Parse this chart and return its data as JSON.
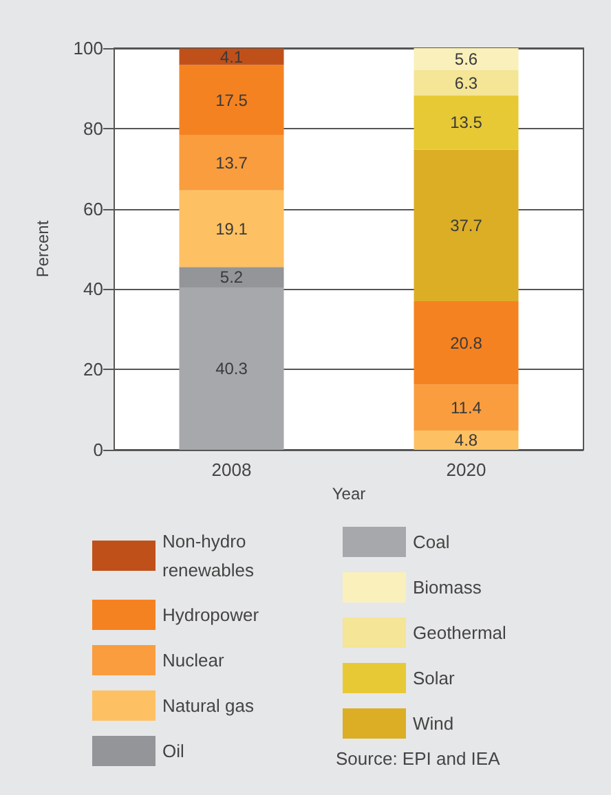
{
  "chart_data": {
    "type": "bar",
    "stacked": true,
    "xlabel": "Year",
    "ylabel": "Percent",
    "categories": [
      "2008",
      "2020"
    ],
    "series": [
      {
        "name": "Coal",
        "color": "#a7a8ab",
        "values": [
          40.3,
          null
        ]
      },
      {
        "name": "Oil",
        "color": "#939598",
        "values": [
          5.2,
          null
        ]
      },
      {
        "name": "Natural gas",
        "color": "#fdc163",
        "values": [
          19.1,
          4.8
        ]
      },
      {
        "name": "Nuclear",
        "color": "#f99d3e",
        "values": [
          13.7,
          11.4
        ]
      },
      {
        "name": "Hydropower",
        "color": "#f58220",
        "values": [
          17.5,
          20.8
        ]
      },
      {
        "name": "Non-hydro renewables",
        "color": "#c0501a",
        "values": [
          4.1,
          null
        ]
      },
      {
        "name": "Wind",
        "color": "#dbae26",
        "values": [
          null,
          37.7
        ]
      },
      {
        "name": "Solar",
        "color": "#e7c935",
        "values": [
          null,
          13.5
        ]
      },
      {
        "name": "Geothermal",
        "color": "#f4e597",
        "values": [
          null,
          6.3
        ]
      },
      {
        "name": "Biomass",
        "color": "#faf0bb",
        "values": [
          null,
          5.6
        ]
      }
    ],
    "ylim": [
      0,
      100
    ],
    "yticks": [
      0,
      20,
      40,
      60,
      80,
      100
    ],
    "grid": "y",
    "data_labels": true,
    "legend": "bottom",
    "annotations": [
      "Source: EPI and IEA"
    ]
  }
}
